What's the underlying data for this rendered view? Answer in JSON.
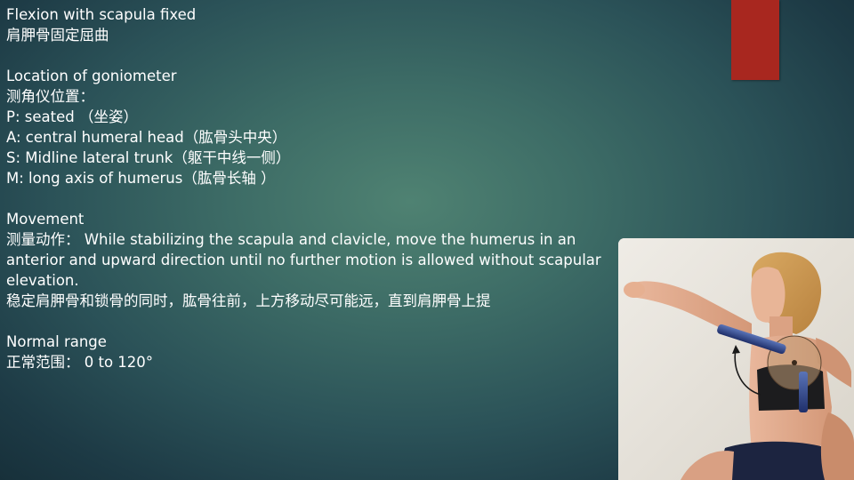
{
  "slide": {
    "heading_en": "Flexion with scapula fixed",
    "heading_zh": "肩胛骨固定屈曲",
    "location": {
      "title_en": "Location of goniometer",
      "title_zh": "测角仪位置：",
      "p": "P: seated （坐姿）",
      "a": "A: central humeral head（肱骨头中央）",
      "s": "S: Midline lateral trunk（躯干中线一侧）",
      "m": "M: long axis of humerus（肱骨长轴 ）"
    },
    "movement": {
      "title_en": "Movement",
      "desc": "测量动作： While stabilizing the scapula and clavicle, move the humerus in an anterior and upward direction until no further motion is allowed without scapular elevation.",
      "desc_zh": "稳定肩胛骨和锁骨的同时，肱骨往前，上方移动尽可能远，直到肩胛骨上提"
    },
    "normal_range": {
      "title_en": "Normal range",
      "value": "正常范围： 0 to 120°"
    }
  },
  "colors": {
    "accent": "#a8271f",
    "text": "#ffffff",
    "background_center": "#4f8272",
    "background_edge": "#17303a"
  },
  "photo": {
    "icon": "goniometer-measurement-photo"
  }
}
